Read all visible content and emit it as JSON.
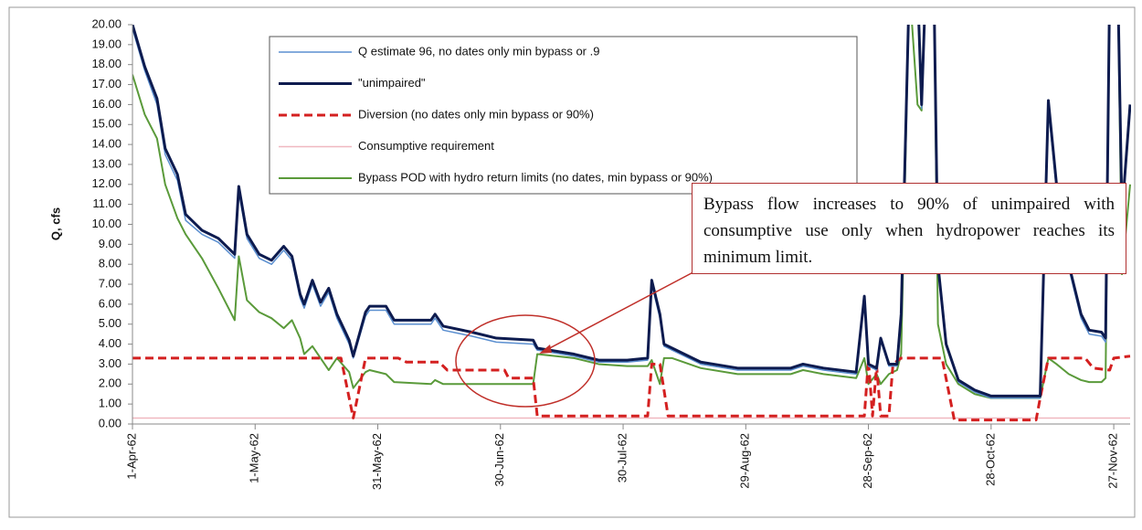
{
  "chart_data": {
    "type": "line",
    "y_label": "Q, cfs",
    "ylim": [
      0,
      20
    ],
    "yticks": [
      {
        "value": 0,
        "label": "0.00"
      },
      {
        "value": 1,
        "label": "1.00"
      },
      {
        "value": 2,
        "label": "2.00"
      },
      {
        "value": 3,
        "label": "3.00"
      },
      {
        "value": 4,
        "label": "4.00"
      },
      {
        "value": 5,
        "label": "5.00"
      },
      {
        "value": 6,
        "label": "6.00"
      },
      {
        "value": 7,
        "label": "7.00"
      },
      {
        "value": 8,
        "label": "8.00"
      },
      {
        "value": 9,
        "label": "9.00"
      },
      {
        "value": 10,
        "label": "10.00"
      },
      {
        "value": 11,
        "label": "11.00"
      },
      {
        "value": 12,
        "label": "12.00"
      },
      {
        "value": 13,
        "label": "13.00"
      },
      {
        "value": 14,
        "label": "14.00"
      },
      {
        "value": 15,
        "label": "15.00"
      },
      {
        "value": 16,
        "label": "16.00"
      },
      {
        "value": 17,
        "label": "17.00"
      },
      {
        "value": 18,
        "label": "18.00"
      },
      {
        "value": 19,
        "label": "19.00"
      },
      {
        "value": 20,
        "label": "20.00"
      }
    ],
    "xlim": [
      "1-Apr-62",
      "1-Dec-62"
    ],
    "xticks": [
      "1-Apr-62",
      "1-May-62",
      "31-May-62",
      "30-Jun-62",
      "30-Jul-62",
      "29-Aug-62",
      "28-Sep-62",
      "28-Oct-62",
      "27-Nov-62"
    ],
    "x": [
      "1-Apr-62",
      "4-Apr-62",
      "7-Apr-62",
      "9-Apr-62",
      "12-Apr-62",
      "14-Apr-62",
      "18-Apr-62",
      "22-Apr-62",
      "26-Apr-62",
      "27-Apr-62",
      "29-Apr-62",
      "2-May-62",
      "5-May-62",
      "8-May-62",
      "10-May-62",
      "12-May-62",
      "13-May-62",
      "15-May-62",
      "17-May-62",
      "19-May-62",
      "21-May-62",
      "24-May-62",
      "25-May-62",
      "28-May-62",
      "29-May-62",
      "2-Jun-62",
      "4-Jun-62",
      "13-Jun-62",
      "14-Jun-62",
      "16-Jun-62",
      "23-Jun-62",
      "29-Jun-62",
      "8-Jul-62",
      "9-Jul-62",
      "18-Jul-62",
      "24-Jul-62",
      "31-Jul-62",
      "5-Aug-62",
      "6-Aug-62",
      "8-Aug-62",
      "9-Aug-62",
      "11-Aug-62",
      "18-Aug-62",
      "27-Aug-62",
      "9-Sep-62",
      "12-Sep-62",
      "17-Sep-62",
      "25-Sep-62",
      "27-Sep-62",
      "28-Sep-62",
      "30-Sep-62",
      "1-Oct-62",
      "3-Oct-62",
      "5-Oct-62",
      "6-Oct-62",
      "8-Oct-62",
      "10-Oct-62",
      "11-Oct-62",
      "12-Oct-62",
      "14-Oct-62",
      "15-Oct-62",
      "17-Oct-62",
      "20-Oct-62",
      "24-Oct-62",
      "28-Oct-62",
      "9-Nov-62",
      "11-Nov-62",
      "13-Nov-62",
      "16-Nov-62",
      "19-Nov-62",
      "21-Nov-62",
      "24-Nov-62",
      "25-Nov-62",
      "26-Nov-62",
      "28-Nov-62",
      "29-Nov-62",
      "1-Dec-62"
    ],
    "series": [
      {
        "name": "Q estimate 96, no dates only min bypass or .9",
        "color": "#5b8fd0",
        "values": [
          19.8,
          17.7,
          16.0,
          13.5,
          12.2,
          10.2,
          9.5,
          9.1,
          8.3,
          11.6,
          9.3,
          8.3,
          8.0,
          8.7,
          8.2,
          6.3,
          5.8,
          7.0,
          5.9,
          6.6,
          5.3,
          4.0,
          3.3,
          5.4,
          5.7,
          5.7,
          5.0,
          5.0,
          5.3,
          4.7,
          4.4,
          4.1,
          4.0,
          3.7,
          3.4,
          3.1,
          3.1,
          3.2,
          7.0,
          5.3,
          3.9,
          3.7,
          3.0,
          2.7,
          2.7,
          2.9,
          2.7,
          2.5,
          6.2,
          2.9,
          2.7,
          4.2,
          2.9,
          2.9,
          5.3,
          22,
          22,
          15.8,
          22,
          22,
          7.8,
          3.9,
          2.1,
          1.6,
          1.3,
          1.3,
          15.8,
          11.7,
          7.8,
          5.3,
          4.5,
          4.4,
          4.1,
          22,
          22,
          10.2,
          15.7
        ]
      },
      {
        "name": "\"unimpaired\"",
        "color": "#0d1b4f",
        "values": [
          20,
          17.9,
          16.3,
          13.8,
          12.5,
          10.5,
          9.7,
          9.3,
          8.5,
          11.9,
          9.5,
          8.5,
          8.2,
          8.9,
          8.4,
          6.5,
          6.0,
          7.2,
          6.1,
          6.8,
          5.5,
          4.2,
          3.4,
          5.6,
          5.9,
          5.9,
          5.2,
          5.2,
          5.5,
          4.9,
          4.6,
          4.3,
          4.2,
          3.8,
          3.5,
          3.2,
          3.2,
          3.3,
          7.2,
          5.5,
          4.0,
          3.8,
          3.1,
          2.8,
          2.8,
          3.0,
          2.8,
          2.6,
          6.4,
          3.0,
          2.8,
          4.3,
          3.0,
          3.0,
          5.5,
          22,
          22,
          16,
          22,
          22,
          8,
          4,
          2.2,
          1.7,
          1.4,
          1.4,
          16.2,
          12,
          8,
          5.5,
          4.7,
          4.6,
          4.3,
          22,
          22,
          10.5,
          16
        ]
      },
      {
        "name": "Diversion (no dates only min bypass or 90%)",
        "color": "#d42020",
        "dashed": true,
        "x": [
          "1-Apr-62",
          "22-May-62",
          "25-May-62",
          "28-May-62",
          "5-Jun-62",
          "7-Jun-62",
          "15-Jun-62",
          "17-Jun-62",
          "1-Jul-62",
          "2-Jul-62",
          "8-Jul-62",
          "9-Jul-62",
          "5-Aug-62",
          "6-Aug-62",
          "8-Aug-62",
          "10-Aug-62",
          "27-Sep-62",
          "28-Sep-62",
          "29-Sep-62",
          "30-Sep-62",
          "1-Oct-62",
          "3-Oct-62",
          "4-Oct-62",
          "6-Oct-62",
          "16-Oct-62",
          "19-Oct-62",
          "8-Nov-62",
          "9-Nov-62",
          "11-Nov-62",
          "20-Nov-62",
          "22-Nov-62",
          "26-Nov-62",
          "27-Nov-62",
          "1-Dec-62"
        ],
        "values": [
          3.3,
          3.3,
          0.3,
          3.3,
          3.3,
          3.1,
          3.1,
          2.7,
          2.7,
          2.3,
          2.3,
          0.4,
          0.4,
          3.0,
          3.0,
          0.4,
          0.4,
          3.2,
          0.4,
          2.9,
          0.4,
          0.4,
          3.0,
          3.3,
          3.3,
          0.2,
          0.2,
          1.3,
          3.3,
          3.3,
          2.8,
          2.7,
          3.3,
          3.4
        ]
      },
      {
        "name": "Consumptive requirement",
        "color": "#f0b8c0",
        "x": [
          "1-Apr-62",
          "1-Dec-62"
        ],
        "values": [
          0.3,
          0.3
        ]
      },
      {
        "name": "Bypass POD with hydro return limits  (no dates, min bypass or 90%)",
        "color": "#5a9a3a",
        "values": [
          17.5,
          15.5,
          14.3,
          12,
          10.3,
          9.5,
          8.3,
          6.8,
          5.2,
          8.4,
          6.2,
          5.6,
          5.3,
          4.8,
          5.2,
          4.3,
          3.5,
          3.9,
          3.3,
          2.7,
          3.3,
          2.6,
          1.8,
          2.6,
          2.7,
          2.5,
          2.1,
          2.0,
          2.2,
          2.0,
          2.0,
          2.0,
          2.0,
          3.5,
          3.3,
          3.0,
          2.9,
          2.9,
          3.2,
          2.0,
          3.3,
          3.3,
          2.8,
          2.5,
          2.5,
          2.7,
          2.5,
          2.3,
          3.3,
          2.0,
          2.5,
          2.0,
          2.5,
          2.7,
          3.5,
          22,
          16,
          15.7,
          22,
          22,
          5,
          3,
          2,
          1.5,
          1.3,
          1.3,
          3.3,
          3.0,
          2.5,
          2.2,
          2.1,
          2.1,
          2.3,
          22,
          22,
          7.5,
          12
        ]
      }
    ],
    "annotation": "Bypass flow increases to 90% of unimpaired with consumptive use only when hydropower reaches its minimum limit."
  }
}
